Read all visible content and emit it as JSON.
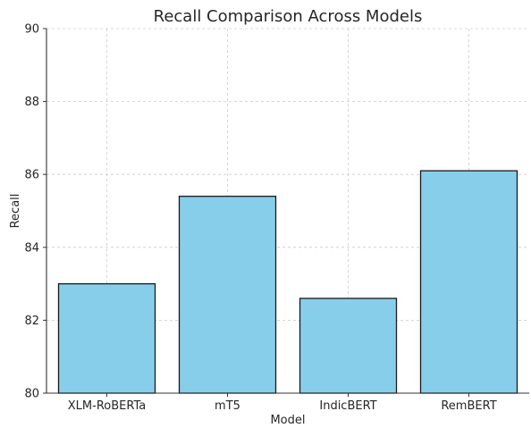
{
  "chart_data": {
    "type": "bar",
    "title": "Recall Comparison Across Models",
    "xlabel": "Model",
    "ylabel": "Recall",
    "categories": [
      "XLM-RoBERTa",
      "mT5",
      "IndicBERT",
      "RemBERT"
    ],
    "values": [
      83.0,
      85.4,
      82.6,
      86.1
    ],
    "ylim": [
      80,
      90
    ],
    "yticks": [
      80,
      82,
      84,
      86,
      88,
      90
    ],
    "grid": true,
    "colors": {
      "bar_fill": "#87ceeb",
      "bar_edge": "#1a1a1a"
    }
  }
}
